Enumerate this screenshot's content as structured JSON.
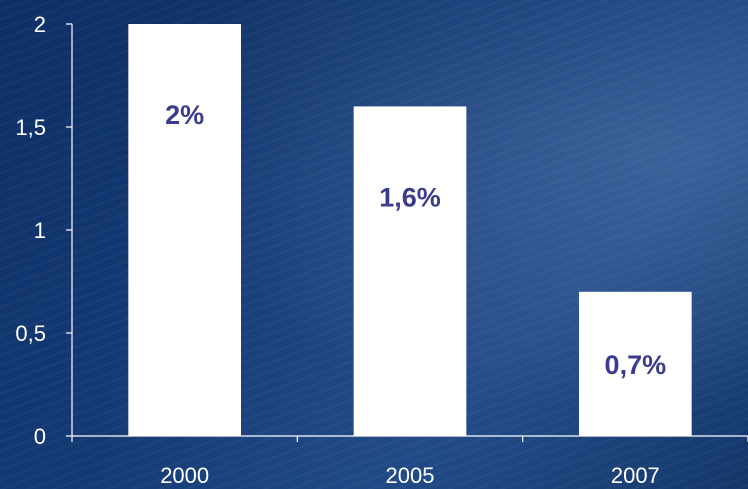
{
  "chart_data": {
    "type": "bar",
    "categories": [
      "2000",
      "2005",
      "2007"
    ],
    "values": [
      2,
      1.6,
      0.7
    ],
    "data_labels": [
      "2%",
      "1,6%",
      "0,7%"
    ],
    "ylim": [
      0,
      2
    ],
    "yticks": [
      0,
      0.5,
      1,
      1.5,
      2
    ],
    "ytick_labels": [
      "0",
      "0,5",
      "1",
      "1,5",
      "2"
    ],
    "title": "",
    "xlabel": "",
    "ylabel": "",
    "grid": false,
    "legend": "none",
    "colors": {
      "bar": "#ffffff",
      "data_label": "#3a3a8c",
      "axis": "#ffffff",
      "background": "#143a74"
    }
  }
}
